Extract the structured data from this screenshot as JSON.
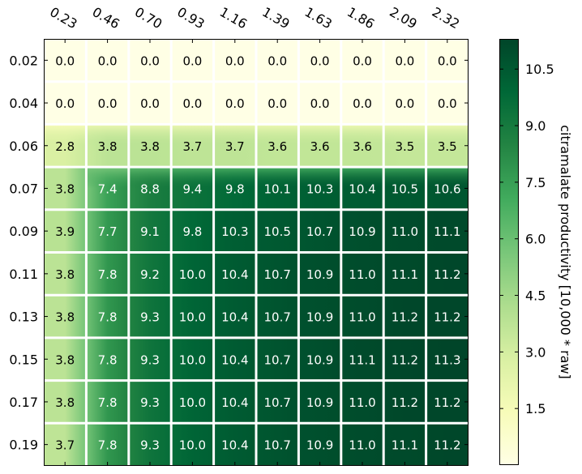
{
  "chart_data": {
    "type": "heatmap",
    "x_tick_labels": [
      "0.23",
      "0.46",
      "0.70",
      "0.93",
      "1.16",
      "1.39",
      "1.63",
      "1.86",
      "2.09",
      "2.32"
    ],
    "y_tick_labels": [
      "0.02",
      "0.04",
      "0.06",
      "0.07",
      "0.09",
      "0.11",
      "0.13",
      "0.15",
      "0.17",
      "0.19"
    ],
    "values": [
      [
        0.0,
        0.0,
        0.0,
        0.0,
        0.0,
        0.0,
        0.0,
        0.0,
        0.0,
        0.0
      ],
      [
        0.0,
        0.0,
        0.0,
        0.0,
        0.0,
        0.0,
        0.0,
        0.0,
        0.0,
        0.0
      ],
      [
        2.8,
        3.8,
        3.8,
        3.7,
        3.7,
        3.6,
        3.6,
        3.6,
        3.5,
        3.5
      ],
      [
        3.8,
        7.4,
        8.8,
        9.4,
        9.8,
        10.1,
        10.3,
        10.4,
        10.5,
        10.6
      ],
      [
        3.9,
        7.7,
        9.1,
        9.8,
        10.3,
        10.5,
        10.7,
        10.9,
        11.0,
        11.1
      ],
      [
        3.8,
        7.8,
        9.2,
        10.0,
        10.4,
        10.7,
        10.9,
        11.0,
        11.1,
        11.2
      ],
      [
        3.8,
        7.8,
        9.3,
        10.0,
        10.4,
        10.7,
        10.9,
        11.0,
        11.2,
        11.2
      ],
      [
        3.8,
        7.8,
        9.3,
        10.0,
        10.4,
        10.7,
        10.9,
        11.1,
        11.2,
        11.3
      ],
      [
        3.8,
        7.8,
        9.3,
        10.0,
        10.4,
        10.7,
        10.9,
        11.0,
        11.2,
        11.2
      ],
      [
        3.7,
        7.8,
        9.3,
        10.0,
        10.4,
        10.7,
        10.9,
        11.0,
        11.1,
        11.2
      ]
    ],
    "value_labels": [
      [
        "0.0",
        "0.0",
        "0.0",
        "0.0",
        "0.0",
        "0.0",
        "0.0",
        "0.0",
        "0.0",
        "0.0"
      ],
      [
        "0.0",
        "0.0",
        "0.0",
        "0.0",
        "0.0",
        "0.0",
        "0.0",
        "0.0",
        "0.0",
        "0.0"
      ],
      [
        "2.8",
        "3.8",
        "3.8",
        "3.7",
        "3.7",
        "3.6",
        "3.6",
        "3.6",
        "3.5",
        "3.5"
      ],
      [
        "3.8",
        "7.4",
        "8.8",
        "9.4",
        "9.8",
        "10.1",
        "10.3",
        "10.4",
        "10.5",
        "10.6"
      ],
      [
        "3.9",
        "7.7",
        "9.1",
        "9.8",
        "10.3",
        "10.5",
        "10.7",
        "10.9",
        "11.0",
        "11.1"
      ],
      [
        "3.8",
        "7.8",
        "9.2",
        "10.0",
        "10.4",
        "10.7",
        "10.9",
        "11.0",
        "11.1",
        "11.2"
      ],
      [
        "3.8",
        "7.8",
        "9.3",
        "10.0",
        "10.4",
        "10.7",
        "10.9",
        "11.0",
        "11.2",
        "11.2"
      ],
      [
        "3.8",
        "7.8",
        "9.3",
        "10.0",
        "10.4",
        "10.7",
        "10.9",
        "11.1",
        "11.2",
        "11.3"
      ],
      [
        "3.8",
        "7.8",
        "9.3",
        "10.0",
        "10.4",
        "10.7",
        "10.9",
        "11.0",
        "11.2",
        "11.2"
      ],
      [
        "3.7",
        "7.8",
        "9.3",
        "10.0",
        "10.4",
        "10.7",
        "10.9",
        "11.0",
        "11.1",
        "11.2"
      ]
    ],
    "colorbar": {
      "label": "citramalate productivity [10,000 * raw]",
      "min": 0.0,
      "max": 11.3,
      "ticks": [
        1.5,
        3.0,
        4.5,
        6.0,
        7.5,
        9.0,
        10.5
      ],
      "tick_labels": [
        "1.5",
        "3.0",
        "4.5",
        "6.0",
        "7.5",
        "9.0",
        "10.5"
      ],
      "colormap": "YlGn",
      "colormap_stops": [
        "#ffffe5",
        "#f7fcb9",
        "#d9f0a3",
        "#addd8e",
        "#78c679",
        "#41ab5d",
        "#238443",
        "#006837",
        "#004529"
      ]
    },
    "x_tick_rotation": "-30deg",
    "x_ticks_position": "top",
    "cell_text_light_threshold": 5.0,
    "cell_text_colors": {
      "dark": "#000000",
      "light": "#ffffff"
    },
    "cell_border_color": "#ffffff",
    "legend": "none"
  }
}
